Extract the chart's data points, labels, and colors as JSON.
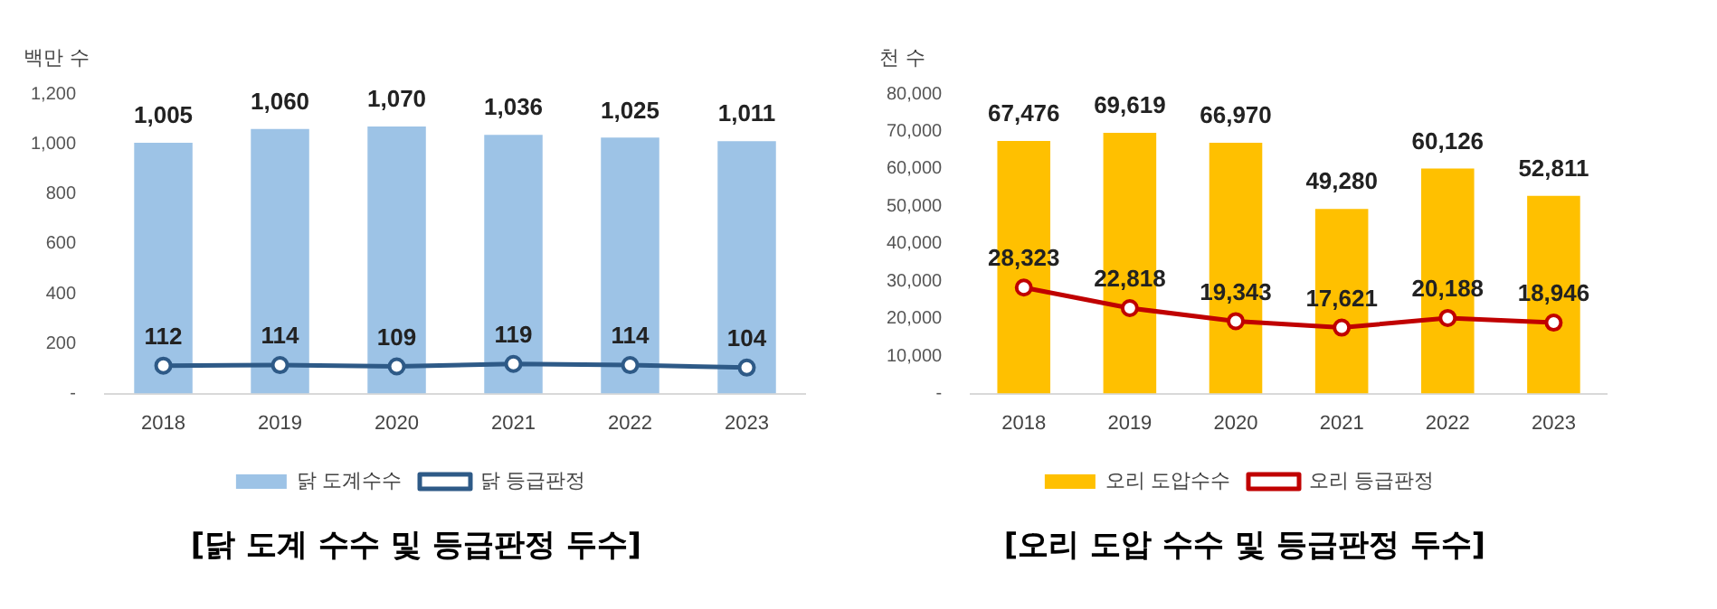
{
  "chart_data": [
    {
      "type": "bar",
      "title": "[닭 도계 수수 및 등급판정 두수]",
      "ylabel": "백만 수",
      "categories": [
        "2018",
        "2019",
        "2020",
        "2021",
        "2022",
        "2023"
      ],
      "series": [
        {
          "name": "닭 도계수수",
          "color": "#9dc3e6",
          "values": [
            1005,
            1060,
            1070,
            1036,
            1025,
            1011
          ],
          "value_labels": [
            "1,005",
            "1,060",
            "1,070",
            "1,036",
            "1,025",
            "1,011"
          ]
        },
        {
          "name": "닭 등급판정",
          "type": "line",
          "color": "#2e5a87",
          "values": [
            112,
            114,
            109,
            119,
            114,
            104
          ],
          "value_labels": [
            "112",
            "114",
            "109",
            "119",
            "114",
            "104"
          ]
        }
      ],
      "ylim": [
        0,
        1200
      ],
      "yticks": [
        {
          "value": 0,
          "label": "-"
        },
        {
          "value": 200,
          "label": "200"
        },
        {
          "value": 400,
          "label": "400"
        },
        {
          "value": 600,
          "label": "600"
        },
        {
          "value": 800,
          "label": "800"
        },
        {
          "value": 1000,
          "label": "1,000"
        },
        {
          "value": 1200,
          "label": "1,200"
        }
      ],
      "grid": false,
      "legend": "bottom",
      "marker": "circle",
      "line_style": "solid"
    },
    {
      "type": "bar",
      "title": "[오리 도압 수수 및 등급판정 두수]",
      "ylabel": "천 수",
      "categories": [
        "2018",
        "2019",
        "2020",
        "2021",
        "2022",
        "2023"
      ],
      "series": [
        {
          "name": "오리 도압수수",
          "color": "#ffc000",
          "values": [
            67476,
            69619,
            66970,
            49280,
            60126,
            52811
          ],
          "value_labels": [
            "67,476",
            "69,619",
            "66,970",
            "49,280",
            "60,126",
            "52,811"
          ]
        },
        {
          "name": "오리 등급판정",
          "type": "line",
          "color": "#c00000",
          "values": [
            28323,
            22818,
            19343,
            17621,
            20188,
            18946
          ],
          "value_labels": [
            "28,323",
            "22,818",
            "19,343",
            "17,621",
            "20,188",
            "18,946"
          ]
        }
      ],
      "ylim": [
        0,
        80000
      ],
      "yticks": [
        {
          "value": 0,
          "label": "-"
        },
        {
          "value": 10000,
          "label": "10,000"
        },
        {
          "value": 20000,
          "label": "20,000"
        },
        {
          "value": 30000,
          "label": "30,000"
        },
        {
          "value": 40000,
          "label": "40,000"
        },
        {
          "value": 50000,
          "label": "50,000"
        },
        {
          "value": 60000,
          "label": "60,000"
        },
        {
          "value": 70000,
          "label": "70,000"
        },
        {
          "value": 80000,
          "label": "80,000"
        }
      ],
      "grid": false,
      "legend": "bottom",
      "marker": "circle",
      "line_style": "solid"
    }
  ]
}
